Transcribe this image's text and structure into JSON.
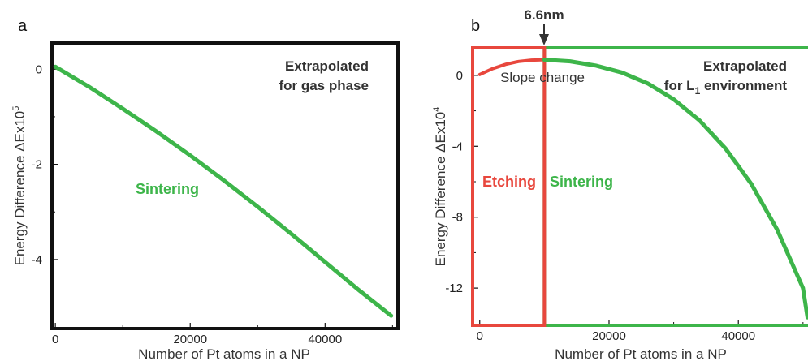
{
  "colors": {
    "green": "#3db54a",
    "red": "#e8473d",
    "frame": "#111111",
    "text": "#333333"
  },
  "chart_data": [
    {
      "panel_label": "a",
      "type": "line",
      "xlabel": "Number of Pt atoms in a NP",
      "ylabel": "Energy Difference ΔEx10",
      "ylabel_exp": "5",
      "xlim": [
        -500,
        50800
      ],
      "ylim": [
        -5.45,
        0.55
      ],
      "xticks": [
        0,
        20000,
        40000
      ],
      "xtick_labels": [
        "0",
        "20000",
        "40000"
      ],
      "yticks": [
        0,
        -2,
        -4
      ],
      "ytick_labels": [
        "0",
        "-2",
        "-4"
      ],
      "annotation": [
        "Extrapolated",
        "for gas phase"
      ],
      "region_label": "Sintering",
      "series": [
        {
          "color": "#3db54a",
          "points": [
            [
              0,
              0.05
            ],
            [
              5000,
              -0.37
            ],
            [
              10000,
              -0.83
            ],
            [
              15000,
              -1.31
            ],
            [
              20000,
              -1.81
            ],
            [
              25000,
              -2.34
            ],
            [
              30000,
              -2.89
            ],
            [
              35000,
              -3.46
            ],
            [
              40000,
              -4.05
            ],
            [
              45000,
              -4.64
            ],
            [
              49800,
              -5.18
            ]
          ]
        }
      ]
    },
    {
      "panel_label": "b",
      "type": "line",
      "xlabel": "Number of Pt atoms in a NP",
      "ylabel": "Energy Difference ΔEx10",
      "ylabel_exp": "4",
      "xlim": [
        -1100,
        50900
      ],
      "ylim": [
        -14.1,
        1.55
      ],
      "xticks": [
        0,
        20000,
        40000
      ],
      "xtick_labels": [
        "0",
        "20000",
        "40000"
      ],
      "yticks": [
        0,
        -4,
        -8,
        -12
      ],
      "ytick_labels": [
        "0",
        "-4",
        "-8",
        "-12"
      ],
      "marker_label": "6.6nm",
      "slope_label": "Slope change",
      "annotation_line1": "Extrapolated",
      "annotation_line2_prefix": "for L",
      "annotation_sub": "1",
      "annotation_line2_suffix": " environment",
      "regions": [
        {
          "label": "Etching",
          "color": "#e8473d",
          "x_range": [
            -1100,
            10000
          ]
        },
        {
          "label": "Sintering",
          "color": "#3db54a",
          "x_range": [
            10000,
            50900
          ]
        }
      ],
      "series": [
        {
          "color": "#e8473d",
          "points": [
            [
              0,
              0.05
            ],
            [
              2000,
              0.38
            ],
            [
              4000,
              0.62
            ],
            [
              6000,
              0.78
            ],
            [
              8000,
              0.86
            ],
            [
              10000,
              0.88
            ]
          ]
        },
        {
          "color": "#3db54a",
          "points": [
            [
              10000,
              0.88
            ],
            [
              14000,
              0.79
            ],
            [
              18000,
              0.55
            ],
            [
              22000,
              0.16
            ],
            [
              26000,
              -0.46
            ],
            [
              30000,
              -1.35
            ],
            [
              34000,
              -2.55
            ],
            [
              38000,
              -4.12
            ],
            [
              42000,
              -6.12
            ],
            [
              46000,
              -8.7
            ],
            [
              50000,
              -12.0
            ],
            [
              50700,
              -13.65
            ]
          ]
        }
      ]
    }
  ]
}
